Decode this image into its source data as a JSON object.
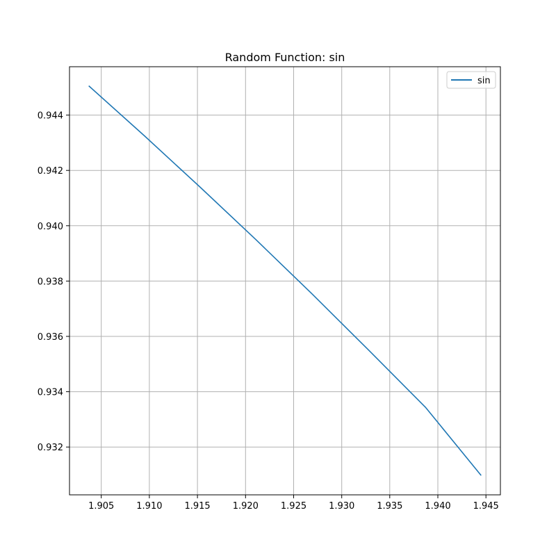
{
  "chart_data": {
    "type": "line",
    "title": "Random Function: sin",
    "xlabel": "",
    "ylabel": "",
    "xlim": [
      1.9017,
      1.9465
    ],
    "ylim": [
      0.93027,
      0.94575
    ],
    "x_ticks": [
      1.905,
      1.91,
      1.915,
      1.92,
      1.925,
      1.93,
      1.935,
      1.94,
      1.945
    ],
    "x_tick_labels": [
      "1.905",
      "1.910",
      "1.915",
      "1.920",
      "1.925",
      "1.930",
      "1.935",
      "1.940",
      "1.945"
    ],
    "y_ticks": [
      0.932,
      0.934,
      0.936,
      0.938,
      0.94,
      0.942,
      0.944
    ],
    "y_tick_labels": [
      "0.932",
      "0.934",
      "0.936",
      "0.938",
      "0.940",
      "0.942",
      "0.944"
    ],
    "grid": true,
    "legend_position": "top-right",
    "series": [
      {
        "name": "sin",
        "color": "#1f77b4",
        "x": [
          1.9037,
          1.9095,
          1.9153,
          1.9211,
          1.9269,
          1.9327,
          1.9387,
          1.9445
        ],
        "y": [
          0.94506,
          0.94325,
          0.94139,
          0.93949,
          0.93754,
          0.93554,
          0.93344,
          0.93097
        ]
      }
    ]
  }
}
